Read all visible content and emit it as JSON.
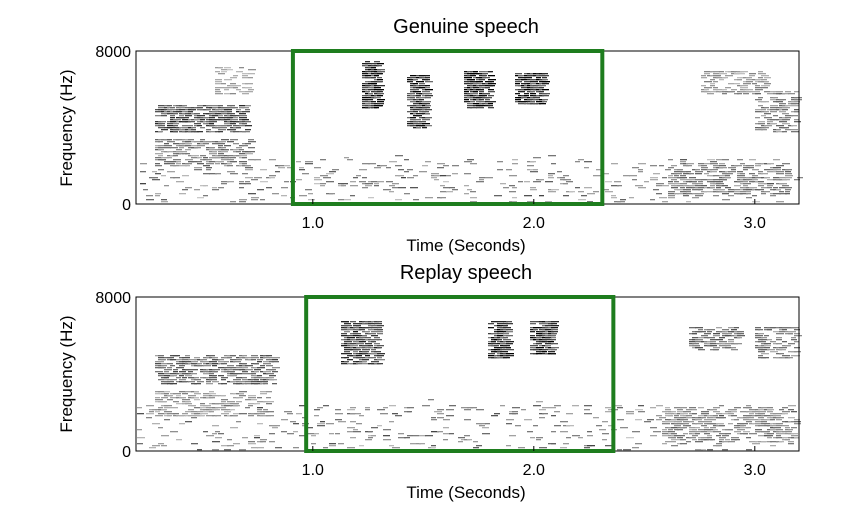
{
  "chart_data": [
    {
      "type": "heatmap",
      "title": "Genuine speech",
      "xlabel": "Time (Seconds)",
      "ylabel": "Frequency (Hz)",
      "xlim": [
        0.2,
        3.2
      ],
      "ylim": [
        0,
        8000
      ],
      "x_ticks": [
        {
          "value": 1.0,
          "label": "1.0"
        },
        {
          "value": 2.0,
          "label": "2.0"
        },
        {
          "value": 3.0,
          "label": "3.0"
        }
      ],
      "y_ticks": [
        {
          "value": 0,
          "label": "0"
        },
        {
          "value": 8000,
          "label": "8000"
        }
      ],
      "highlight_box": {
        "x0": 0.91,
        "x1": 2.31,
        "y0": 0,
        "y1": 8000,
        "color": "#1e7d1e"
      },
      "colormap": "gray_r",
      "energy_regions": [
        {
          "t0": 0.28,
          "t1": 0.7,
          "f0": 3800,
          "f1": 5200,
          "intensity": 0.75
        },
        {
          "t0": 0.28,
          "t1": 0.72,
          "f0": 2000,
          "f1": 3500,
          "intensity": 0.55
        },
        {
          "t0": 0.55,
          "t1": 0.72,
          "f0": 5800,
          "f1": 7200,
          "intensity": 0.4
        },
        {
          "t0": 1.22,
          "t1": 1.3,
          "f0": 5000,
          "f1": 7500,
          "intensity": 0.95
        },
        {
          "t0": 1.42,
          "t1": 1.52,
          "f0": 4000,
          "f1": 6800,
          "intensity": 0.9
        },
        {
          "t0": 1.68,
          "t1": 1.8,
          "f0": 5000,
          "f1": 7000,
          "intensity": 0.95
        },
        {
          "t0": 1.91,
          "t1": 2.04,
          "f0": 5200,
          "f1": 6900,
          "intensity": 0.95
        },
        {
          "t0": 2.6,
          "t1": 3.15,
          "f0": 400,
          "f1": 2200,
          "intensity": 0.55
        },
        {
          "t0": 2.75,
          "t1": 3.05,
          "f0": 5800,
          "f1": 7000,
          "intensity": 0.45
        },
        {
          "t0": 3.0,
          "t1": 3.18,
          "f0": 3800,
          "f1": 6000,
          "intensity": 0.55
        }
      ]
    },
    {
      "type": "heatmap",
      "title": "Replay speech",
      "xlabel": "Time (Seconds)",
      "ylabel": "Frequency (Hz)",
      "xlim": [
        0.2,
        3.2
      ],
      "ylim": [
        0,
        8000
      ],
      "x_ticks": [
        {
          "value": 1.0,
          "label": "1.0"
        },
        {
          "value": 2.0,
          "label": "2.0"
        },
        {
          "value": 3.0,
          "label": "3.0"
        }
      ],
      "y_ticks": [
        {
          "value": 0,
          "label": "0"
        },
        {
          "value": 8000,
          "label": "8000"
        }
      ],
      "highlight_box": {
        "x0": 0.97,
        "x1": 2.36,
        "y0": 0,
        "y1": 8000,
        "color": "#1e7d1e"
      },
      "colormap": "gray_r",
      "energy_regions": [
        {
          "t0": 0.28,
          "t1": 0.82,
          "f0": 3500,
          "f1": 5000,
          "intensity": 0.65
        },
        {
          "t0": 0.28,
          "t1": 0.8,
          "f0": 1800,
          "f1": 3200,
          "intensity": 0.45
        },
        {
          "t0": 1.12,
          "t1": 1.3,
          "f0": 4500,
          "f1": 6800,
          "intensity": 0.8
        },
        {
          "t0": 1.78,
          "t1": 1.88,
          "f0": 4800,
          "f1": 6800,
          "intensity": 0.9
        },
        {
          "t0": 1.98,
          "t1": 2.08,
          "f0": 5000,
          "f1": 6800,
          "intensity": 0.9
        },
        {
          "t0": 2.58,
          "t1": 3.18,
          "f0": 500,
          "f1": 2300,
          "intensity": 0.5
        },
        {
          "t0": 2.7,
          "t1": 2.92,
          "f0": 5200,
          "f1": 6500,
          "intensity": 0.6
        },
        {
          "t0": 3.0,
          "t1": 3.18,
          "f0": 4800,
          "f1": 6500,
          "intensity": 0.55
        }
      ]
    }
  ]
}
